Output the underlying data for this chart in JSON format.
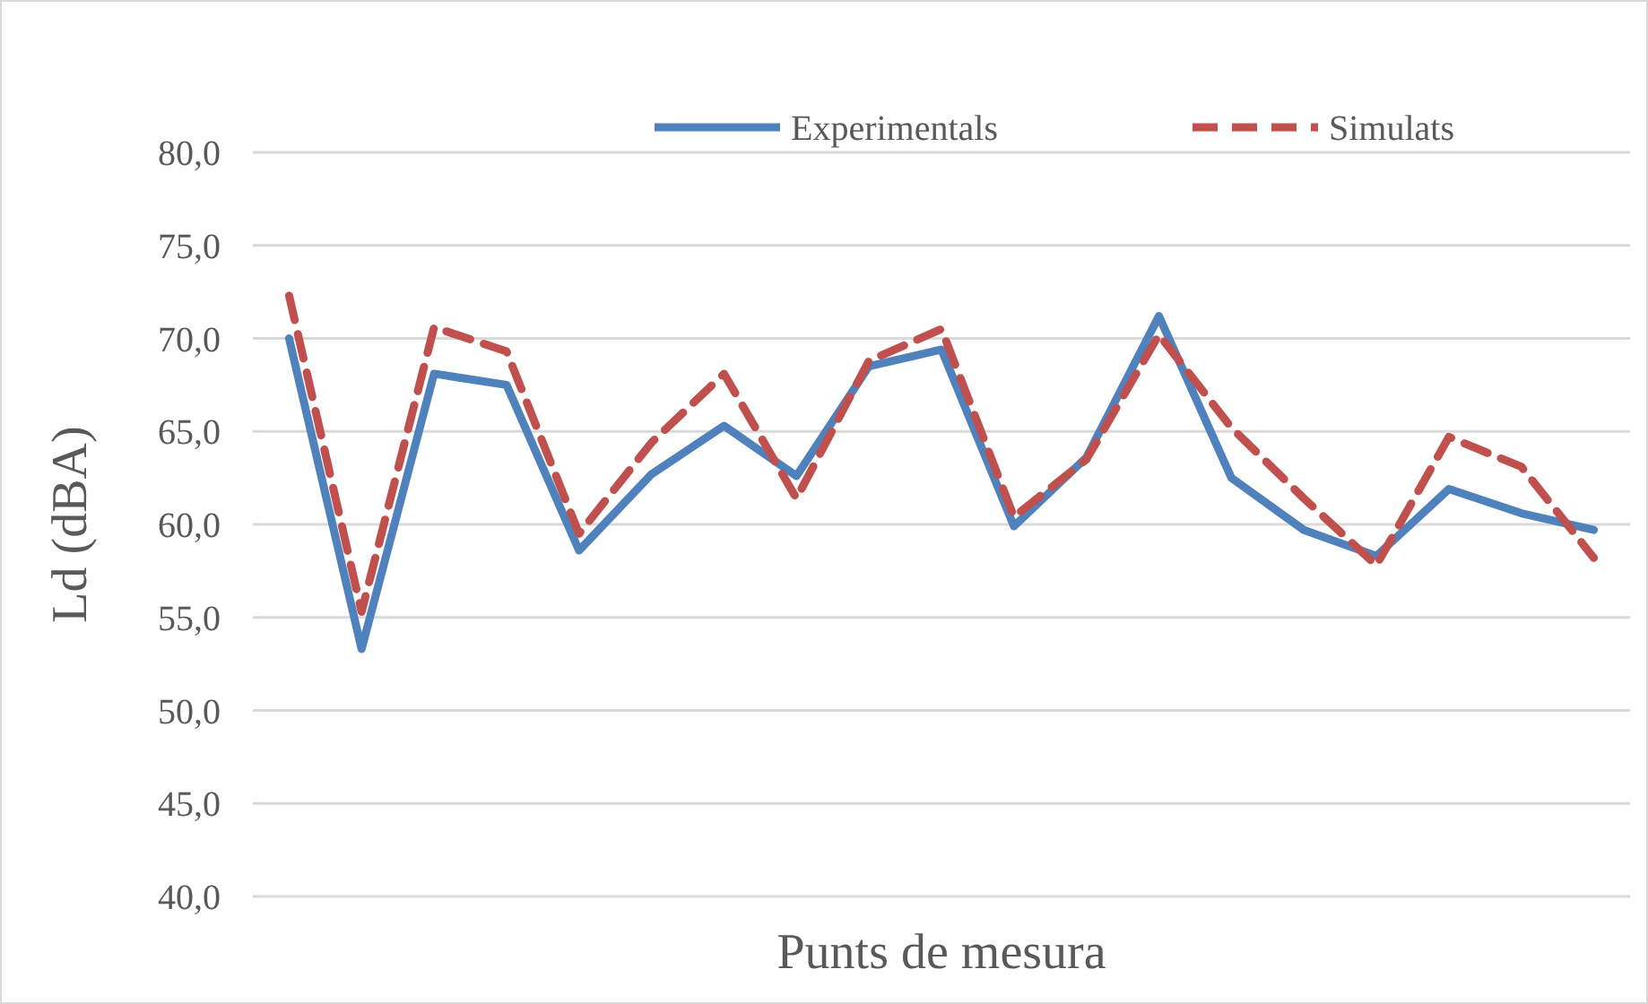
{
  "chart_data": {
    "type": "line",
    "xlabel": "Punts de mesura",
    "ylabel": "Ld (dBA)",
    "categories": [
      null,
      null,
      null,
      null,
      null,
      null,
      null,
      null,
      null,
      null,
      null,
      null,
      null,
      null,
      null,
      null,
      null,
      null,
      null
    ],
    "series": [
      {
        "name": "Experimentals",
        "color": "#4f81bd",
        "line_style": "solid",
        "values": [
          70.0,
          53.3,
          68.1,
          67.5,
          58.6,
          62.7,
          65.3,
          62.6,
          68.5,
          69.4,
          59.9,
          63.6,
          71.2,
          62.5,
          59.7,
          58.3,
          61.9,
          60.6,
          59.7
        ]
      },
      {
        "name": "Simulats",
        "color": "#c0504d",
        "line_style": "dashed",
        "values": [
          72.3,
          55.3,
          70.6,
          69.3,
          59.5,
          64.4,
          68.1,
          61.4,
          68.8,
          70.5,
          60.4,
          63.5,
          70.2,
          65.2,
          61.4,
          57.8,
          64.7,
          63.1,
          58.2
        ]
      }
    ],
    "ylim": [
      40,
      80
    ],
    "yticks": [
      {
        "value": 40,
        "label": "40,0"
      },
      {
        "value": 45,
        "label": "45,0"
      },
      {
        "value": 50,
        "label": "50,0"
      },
      {
        "value": 55,
        "label": "55,0"
      },
      {
        "value": 60,
        "label": "60,0"
      },
      {
        "value": 65,
        "label": "65,0"
      },
      {
        "value": 70,
        "label": "70,0"
      },
      {
        "value": 75,
        "label": "75,0"
      },
      {
        "value": 80,
        "label": "80,0"
      }
    ],
    "grid": "y",
    "legend": "top",
    "marker": "none",
    "tick_labels": "y"
  }
}
